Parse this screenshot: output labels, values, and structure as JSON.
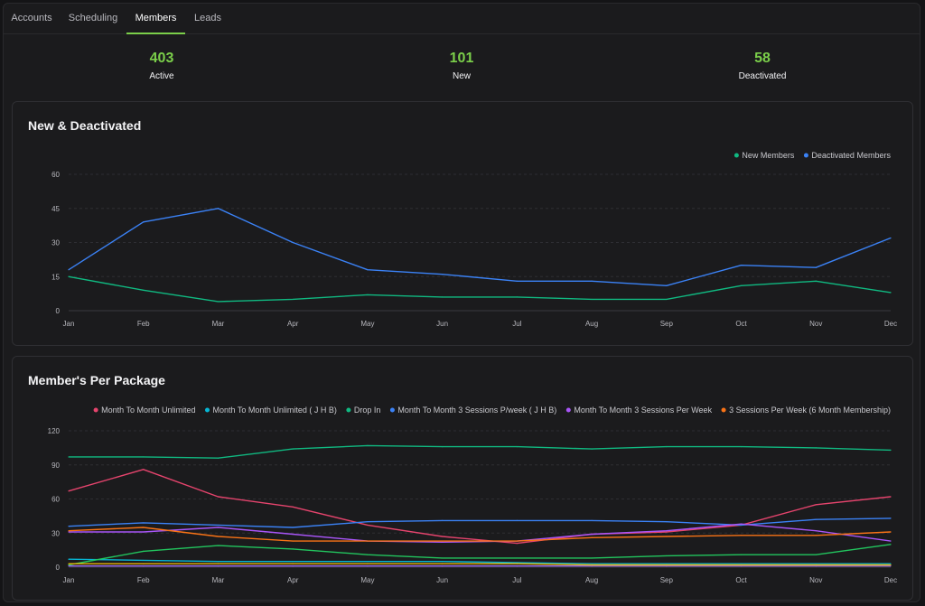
{
  "tabs": [
    {
      "label": "Accounts",
      "active": false
    },
    {
      "label": "Scheduling",
      "active": false
    },
    {
      "label": "Members",
      "active": true
    },
    {
      "label": "Leads",
      "active": false
    }
  ],
  "stats": [
    {
      "value": "403",
      "label": "Active"
    },
    {
      "value": "101",
      "label": "New"
    },
    {
      "value": "58",
      "label": "Deactivated"
    }
  ],
  "colors": {
    "accent": "#7bcf4a",
    "background": "#1b1b1d"
  },
  "chart_data": [
    {
      "type": "line",
      "title": "New & Deactivated",
      "categories": [
        "Jan",
        "Feb",
        "Mar",
        "Apr",
        "May",
        "Jun",
        "Jul",
        "Aug",
        "Sep",
        "Oct",
        "Nov",
        "Dec"
      ],
      "ylim": [
        0,
        60
      ],
      "yticks": [
        0,
        15,
        30,
        45,
        60
      ],
      "grid": true,
      "legend": "top-right",
      "series": [
        {
          "name": "New Members",
          "color": "#10b981",
          "values": [
            15,
            9,
            4,
            5,
            7,
            6,
            6,
            5,
            5,
            11,
            13,
            8
          ]
        },
        {
          "name": "Deactivated Members",
          "color": "#3b82f6",
          "values": [
            18,
            39,
            45,
            30,
            18,
            16,
            13,
            13,
            11,
            20,
            19,
            32
          ]
        }
      ]
    },
    {
      "type": "line",
      "title": "Member's Per Package",
      "categories": [
        "Jan",
        "Feb",
        "Mar",
        "Apr",
        "May",
        "Jun",
        "Jul",
        "Aug",
        "Sep",
        "Oct",
        "Nov",
        "Dec"
      ],
      "ylim": [
        0,
        120
      ],
      "yticks": [
        0,
        30,
        60,
        90,
        120
      ],
      "grid": true,
      "legend": "top",
      "series": [
        {
          "name": "Month To Month Unlimited",
          "color": "#e5446d",
          "values": [
            67,
            86,
            62,
            53,
            37,
            27,
            21,
            29,
            31,
            37,
            55,
            62
          ]
        },
        {
          "name": "Month To Month Unlimited ( J H B)",
          "color": "#06b6d4",
          "values": [
            7,
            6,
            5,
            5,
            5,
            5,
            4,
            3,
            3,
            3,
            3,
            3
          ]
        },
        {
          "name": "Drop In",
          "color": "#10b981",
          "values": [
            97,
            97,
            96,
            104,
            107,
            106,
            106,
            104,
            106,
            106,
            105,
            103
          ]
        },
        {
          "name": "Month To Month 3 Sessions P/week ( J H B)",
          "color": "#3b82f6",
          "values": [
            36,
            39,
            37,
            35,
            40,
            41,
            41,
            41,
            40,
            37,
            42,
            43
          ]
        },
        {
          "name": "Month To Month 3 Sessions Per Week",
          "color": "#a855f7",
          "values": [
            31,
            31,
            35,
            29,
            23,
            22,
            23,
            29,
            32,
            38,
            32,
            23
          ]
        },
        {
          "name": "3 Sessions Per Week (6 Month Membership)",
          "color": "#f97316",
          "values": [
            32,
            35,
            27,
            23,
            23,
            23,
            23,
            26,
            27,
            28,
            28,
            31
          ]
        },
        {
          "name": "",
          "color": "#22c55e",
          "values": [
            2,
            14,
            19,
            16,
            11,
            8,
            8,
            8,
            10,
            11,
            11,
            20
          ]
        },
        {
          "name": "",
          "color": "#9b6cf0",
          "values": [
            1,
            1,
            1,
            1,
            1,
            1,
            1,
            1,
            1,
            1,
            1,
            1
          ]
        },
        {
          "name": "",
          "color": "#eab308",
          "values": [
            3,
            3,
            3,
            3,
            3,
            3,
            3,
            2,
            2,
            2,
            2,
            2
          ]
        }
      ]
    }
  ]
}
